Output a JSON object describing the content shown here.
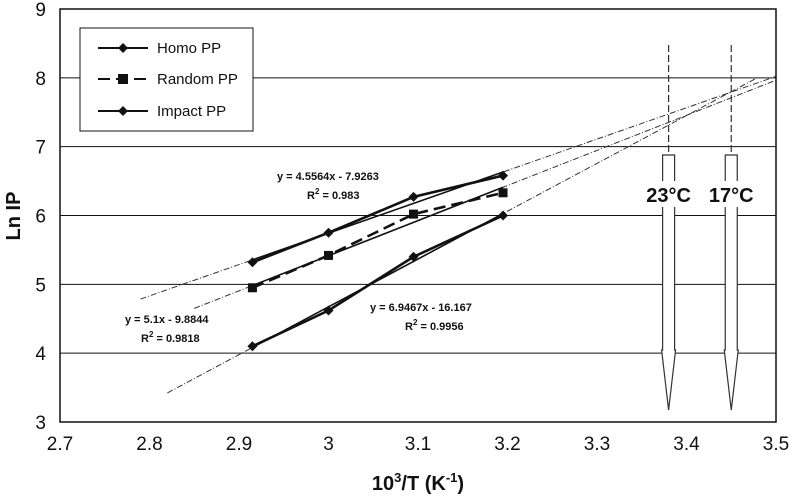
{
  "chart_data": {
    "type": "line",
    "title": "",
    "xlabel_base": "10",
    "xlabel_sup": "3",
    "xlabel_rest": "/T (K",
    "xlabel_sup2": "-1",
    "xlabel_end": ")",
    "ylabel": "Ln IP",
    "xlim": [
      2.7,
      3.5
    ],
    "ylim": [
      3,
      9
    ],
    "xticks": [
      "2.7",
      "2.8",
      "2.9",
      "3",
      "3.1",
      "3.2",
      "3.3",
      "3.4",
      "3.5"
    ],
    "yticks": [
      "3",
      "4",
      "5",
      "6",
      "7",
      "8",
      "9"
    ],
    "series": [
      {
        "name": "Homo PP",
        "marker": "diamond",
        "x": [
          2.915,
          3.0,
          3.095,
          3.195
        ],
        "y": [
          5.32,
          5.75,
          6.27,
          6.58
        ],
        "fit": {
          "slope": 4.5564,
          "intercept": -7.9263,
          "x_from": 2.79,
          "x_to": 3.5,
          "equation": "y = 4.5564x - 7.9263",
          "r2_label": "R",
          "r2_sup": "2",
          "r2_value": " = 0.983"
        }
      },
      {
        "name": "Random PP",
        "marker": "square",
        "x": [
          2.915,
          3.0,
          3.095,
          3.195
        ],
        "y": [
          4.95,
          5.42,
          6.02,
          6.33
        ],
        "fit": {
          "slope": 5.1,
          "intercept": -9.8844,
          "x_from": 2.85,
          "x_to": 3.5,
          "equation": "y = 5.1x - 9.8844",
          "r2_label": "R",
          "r2_sup": "2",
          "r2_value": " = 0.9818"
        }
      },
      {
        "name": "Impact PP",
        "marker": "diamond",
        "x": [
          2.915,
          3.0,
          3.095,
          3.195
        ],
        "y": [
          4.1,
          4.62,
          5.4,
          6.0
        ],
        "fit": {
          "slope": 6.9467,
          "intercept": -16.167,
          "x_from": 2.82,
          "x_to": 3.48,
          "equation": "y = 6.9467x - 16.167",
          "r2_label": "R",
          "r2_sup": "2",
          "r2_value": " = 0.9956"
        }
      }
    ],
    "annotations": [
      {
        "text": "23°C",
        "x": 3.38
      },
      {
        "text": "17°C",
        "x": 3.45
      }
    ],
    "legend_position": "top-left",
    "grid": "horizontal"
  }
}
